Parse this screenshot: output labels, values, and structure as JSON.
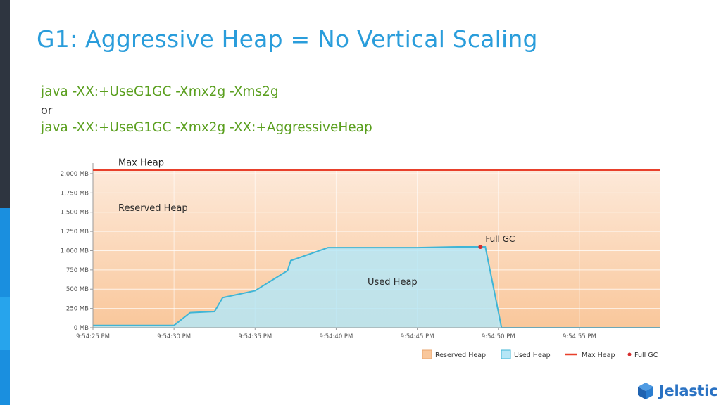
{
  "slide": {
    "title": "G1: Aggressive Heap = No Vertical Scaling",
    "command_1": "java -XX:+UseG1GC -Xmx2g -Xms2g",
    "or_text": "or",
    "command_2": "java -XX:+UseG1GC -Xmx2g -XX:+AggressiveHeap",
    "brand": "Jelastic"
  },
  "colors": {
    "title": "#2a9ddb",
    "command": "#5a9f1e",
    "reserved_top": "#fde9d9",
    "reserved_bottom": "#f9c79b",
    "used_fill": "#b5e6f6",
    "used_line": "#3fb5d6",
    "max_heap_line": "#e8402b",
    "full_gc_marker": "#d62c2c",
    "brand": "#2a72c3"
  },
  "chart_data": {
    "type": "area",
    "x_ticks": [
      "9:54:25 PM",
      "9:54:30 PM",
      "9:54:35 PM",
      "9:54:40 PM",
      "9:54:45 PM",
      "9:54:50 PM",
      "9:54:55 PM"
    ],
    "y_ticks": [
      "0 MB",
      "250 MB",
      "500 MB",
      "750 MB",
      "1,000 MB",
      "1,250 MB",
      "1,500 MB",
      "1,750 MB",
      "2,000 MB"
    ],
    "y_tick_values": [
      0,
      250,
      500,
      750,
      1000,
      1250,
      1500,
      1750,
      2000
    ],
    "ylim": [
      0,
      2100
    ],
    "xlim_seconds": [
      0,
      35
    ],
    "series": [
      {
        "name": "Used Heap",
        "points": [
          [
            0,
            30
          ],
          [
            5,
            30
          ],
          [
            6,
            195
          ],
          [
            7.5,
            210
          ],
          [
            8,
            390
          ],
          [
            10,
            480
          ],
          [
            12,
            740
          ],
          [
            12.2,
            870
          ],
          [
            14.5,
            1040
          ],
          [
            20,
            1040
          ],
          [
            22.5,
            1050
          ],
          [
            24.2,
            1050
          ],
          [
            25.2,
            0
          ],
          [
            35,
            0
          ]
        ]
      },
      {
        "name": "Max Heap",
        "value": 2048
      }
    ],
    "reserved_heap": 2048,
    "full_gc": {
      "label": "Full GC",
      "x": 23.9,
      "y": 1050
    },
    "annotations": {
      "max_heap": "Max Heap",
      "reserved_heap": "Reserved Heap",
      "used_heap": "Used Heap",
      "full_gc": "Full GC"
    },
    "legend": [
      "Reserved Heap",
      "Used Heap",
      "Max Heap",
      "Full GC"
    ],
    "legend_position": "bottom-right",
    "grid": true
  }
}
